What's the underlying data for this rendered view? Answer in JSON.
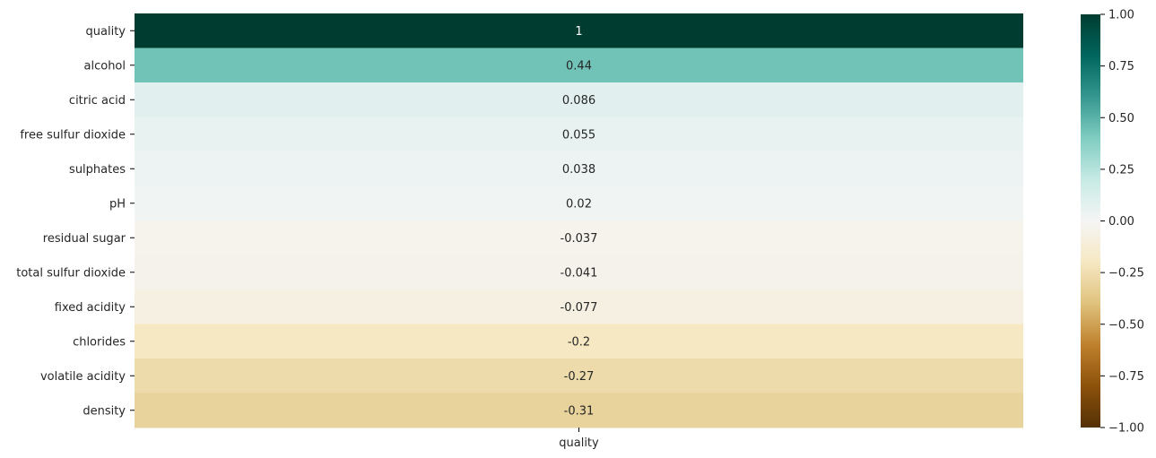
{
  "chart_data": {
    "type": "heatmap",
    "title": "",
    "xlabel": "",
    "ylabel": "",
    "columns": [
      "quality"
    ],
    "rows": [
      "quality",
      "alcohol",
      "citric acid",
      "free sulfur dioxide",
      "sulphates",
      "pH",
      "residual sugar",
      "total sulfur dioxide",
      "fixed acidity",
      "chlorides",
      "volatile acidity",
      "density"
    ],
    "values": [
      1,
      0.44,
      0.086,
      0.055,
      0.038,
      0.02,
      -0.037,
      -0.041,
      -0.077,
      -0.2,
      -0.27,
      -0.31
    ],
    "annotations": [
      "1",
      "0.44",
      "0.086",
      "0.055",
      "0.038",
      "0.02",
      "-0.037",
      "-0.041",
      "-0.077",
      "-0.2",
      "-0.27",
      "-0.31"
    ],
    "colormap": "BrBG",
    "vmin": -1,
    "vmax": 1,
    "colorbar": {
      "ticks": [
        1.0,
        0.75,
        0.5,
        0.25,
        0.0,
        -0.25,
        -0.5,
        -0.75,
        -1.0
      ],
      "tick_labels": [
        "1.00",
        "0.75",
        "0.50",
        "0.25",
        "0.00",
        "−0.25",
        "−0.50",
        "−0.75",
        "−1.00"
      ]
    }
  }
}
